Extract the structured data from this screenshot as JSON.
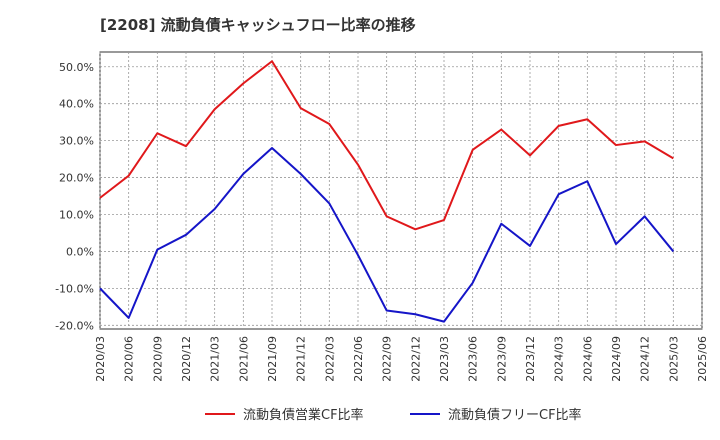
{
  "chart_data": {
    "type": "line",
    "title": "[2208]  流動負債キャッシュフロー比率の推移",
    "xlabel": "",
    "ylabel": "",
    "x": [
      "2020/03",
      "2020/06",
      "2020/09",
      "2020/12",
      "2021/03",
      "2021/06",
      "2021/09",
      "2021/12",
      "2022/03",
      "2022/06",
      "2022/09",
      "2022/12",
      "2023/03",
      "2023/06",
      "2023/09",
      "2023/12",
      "2024/03",
      "2024/06",
      "2024/09",
      "2024/12",
      "2025/03",
      "2025/06"
    ],
    "ylim": [
      -21,
      54
    ],
    "yticks": [
      -20,
      -10,
      0,
      10,
      20,
      30,
      40,
      50
    ],
    "ytick_labels": [
      "-20.0%",
      "-10.0%",
      "0.0%",
      "10.0%",
      "20.0%",
      "30.0%",
      "40.0%",
      "50.0%"
    ],
    "grid": true,
    "legend_position": "bottom",
    "series": [
      {
        "name": "流動負債営業CF比率",
        "color": "#e0181b",
        "values": [
          14.5,
          20.5,
          32.0,
          28.5,
          38.5,
          45.5,
          51.5,
          38.8,
          34.5,
          23.5,
          9.5,
          6.0,
          8.5,
          27.5,
          33.0,
          26.0,
          34.0,
          35.8,
          28.8,
          29.8,
          25.2,
          null
        ]
      },
      {
        "name": "流動負債フリーCF比率",
        "color": "#1515c8",
        "values": [
          -10.0,
          -18.0,
          0.5,
          4.5,
          11.5,
          21.0,
          28.0,
          21.0,
          13.0,
          -1.0,
          -16.0,
          -17.0,
          -19.0,
          -8.5,
          7.5,
          1.5,
          15.5,
          19.0,
          2.0,
          9.5,
          0.0,
          null
        ]
      }
    ]
  }
}
